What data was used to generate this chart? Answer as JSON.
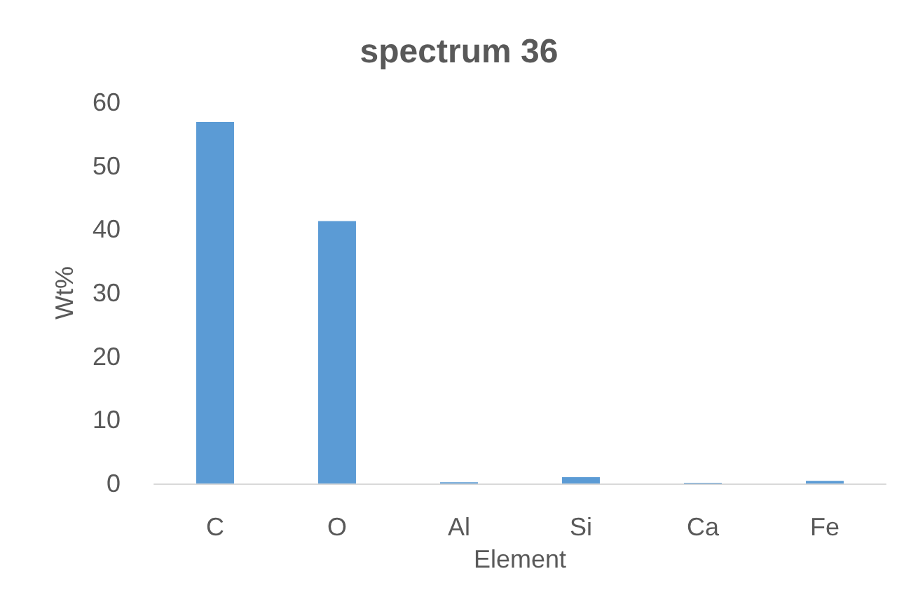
{
  "chart_data": {
    "type": "bar",
    "title": "spectrum 36",
    "xlabel": "Element",
    "ylabel": "Wt%",
    "categories": [
      "C",
      "O",
      "Al",
      "Si",
      "Ca",
      "Fe"
    ],
    "values": [
      56.9,
      41.3,
      0.2,
      1.0,
      0.1,
      0.4
    ],
    "color": "#5b9bd5",
    "ylim": [
      0,
      60
    ],
    "yticks": [
      0,
      10,
      20,
      30,
      40,
      50,
      60
    ],
    "grid": false
  }
}
